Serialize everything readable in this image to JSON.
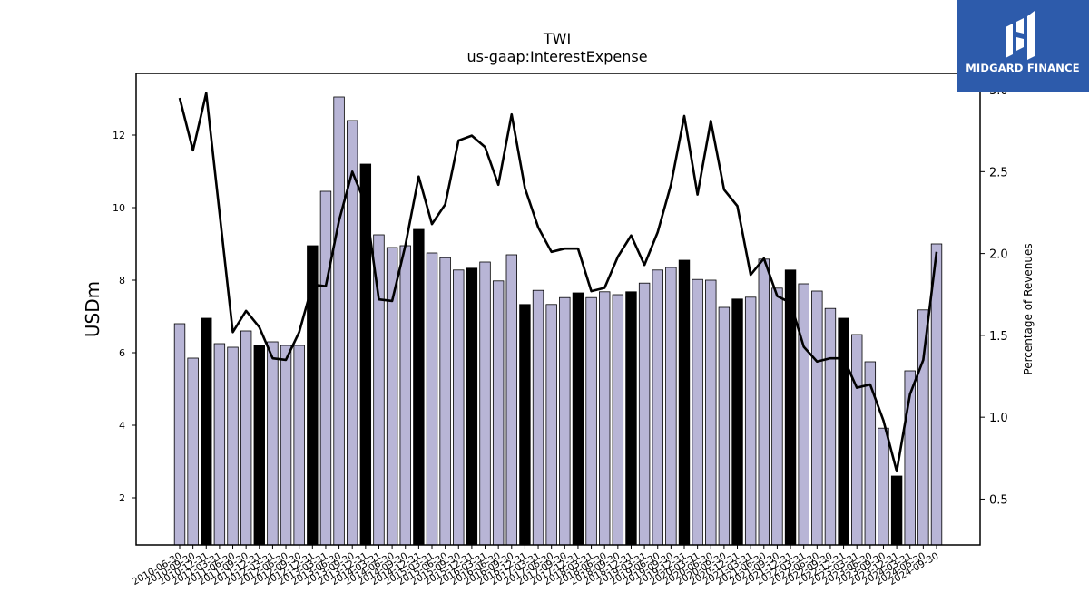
{
  "brand": {
    "name": "MIDGARD FINANCE",
    "bg_color": "#2d5bab"
  },
  "chart_data": {
    "type": "bar",
    "title": "TWI",
    "subtitle": "us-gaap:InterestExpense",
    "ylabel": "USDm",
    "y2label": "Percentage of Revenues",
    "ylim": [
      0.7,
      13.7
    ],
    "y2lim": [
      0.22,
      3.1
    ],
    "yticks": [
      2,
      4,
      6,
      8,
      10,
      12
    ],
    "y2ticks": [
      0.5,
      1.0,
      1.5,
      2.0,
      2.5,
      3.0
    ],
    "bar_colors": {
      "quarter": "#b8b5d6",
      "year_end": "#000000"
    },
    "line_color": "#000000",
    "categories": [
      "2010-06-30",
      "2010-09-30",
      "2010-12-31",
      "2011-03-31",
      "2011-06-30",
      "2011-09-30",
      "2011-12-31",
      "2012-03-31",
      "2012-06-30",
      "2012-09-30",
      "2012-12-31",
      "2013-03-31",
      "2013-06-30",
      "2013-09-30",
      "2013-12-31",
      "2014-03-31",
      "2014-06-30",
      "2014-09-30",
      "2014-12-31",
      "2015-03-31",
      "2015-06-30",
      "2015-09-30",
      "2015-12-31",
      "2016-03-31",
      "2016-06-30",
      "2016-09-30",
      "2016-12-31",
      "2017-03-31",
      "2017-06-30",
      "2017-09-30",
      "2017-12-31",
      "2018-03-31",
      "2018-06-30",
      "2018-09-30",
      "2018-12-31",
      "2019-03-31",
      "2019-06-30",
      "2019-09-30",
      "2019-12-31",
      "2020-03-31",
      "2020-06-30",
      "2020-09-30",
      "2020-12-31",
      "2021-03-31",
      "2021-06-30",
      "2021-09-30",
      "2021-12-31",
      "2022-03-31",
      "2022-06-30",
      "2022-09-30",
      "2022-12-31",
      "2023-03-31",
      "2023-06-30",
      "2023-09-30",
      "2023-12-31",
      "2024-03-31",
      "2024-06-30",
      "2024-09-30"
    ],
    "series": [
      {
        "kind": "bar",
        "values": [
          6.8,
          5.85,
          6.95,
          6.25,
          6.15,
          6.6,
          6.2,
          6.3,
          6.2,
          6.2,
          8.95,
          10.45,
          13.05,
          12.4,
          11.2,
          9.25,
          8.9,
          8.95,
          9.4,
          8.75,
          8.62,
          8.28,
          8.33,
          8.5,
          7.98,
          8.7,
          7.33,
          7.72,
          7.33,
          7.52,
          7.65,
          7.52,
          7.68,
          7.6,
          7.68,
          7.92,
          8.28,
          8.35,
          8.55,
          8.02,
          8.0,
          7.25,
          7.48,
          7.53,
          8.58,
          7.78,
          8.28,
          7.9,
          7.7,
          7.22,
          6.95,
          6.5,
          5.75,
          3.92,
          2.6,
          5.5,
          7.18,
          9.0
        ]
      },
      {
        "kind": "line",
        "axis": "right",
        "values": [
          2.95,
          2.63,
          2.98,
          2.25,
          1.52,
          1.65,
          1.55,
          1.36,
          1.35,
          1.52,
          1.81,
          1.8,
          2.2,
          2.5,
          2.3,
          1.72,
          1.71,
          2.05,
          2.47,
          2.18,
          2.3,
          2.69,
          2.72,
          2.65,
          2.42,
          2.85,
          2.4,
          2.16,
          2.01,
          2.03,
          2.03,
          1.77,
          1.79,
          1.98,
          2.11,
          1.93,
          2.13,
          2.42,
          2.84,
          2.36,
          2.81,
          2.39,
          2.29,
          1.87,
          1.97,
          1.74,
          1.7,
          1.43,
          1.34,
          1.36,
          1.36,
          1.18,
          1.2,
          0.98,
          0.67,
          1.14,
          1.35,
          2.01
        ]
      }
    ]
  }
}
